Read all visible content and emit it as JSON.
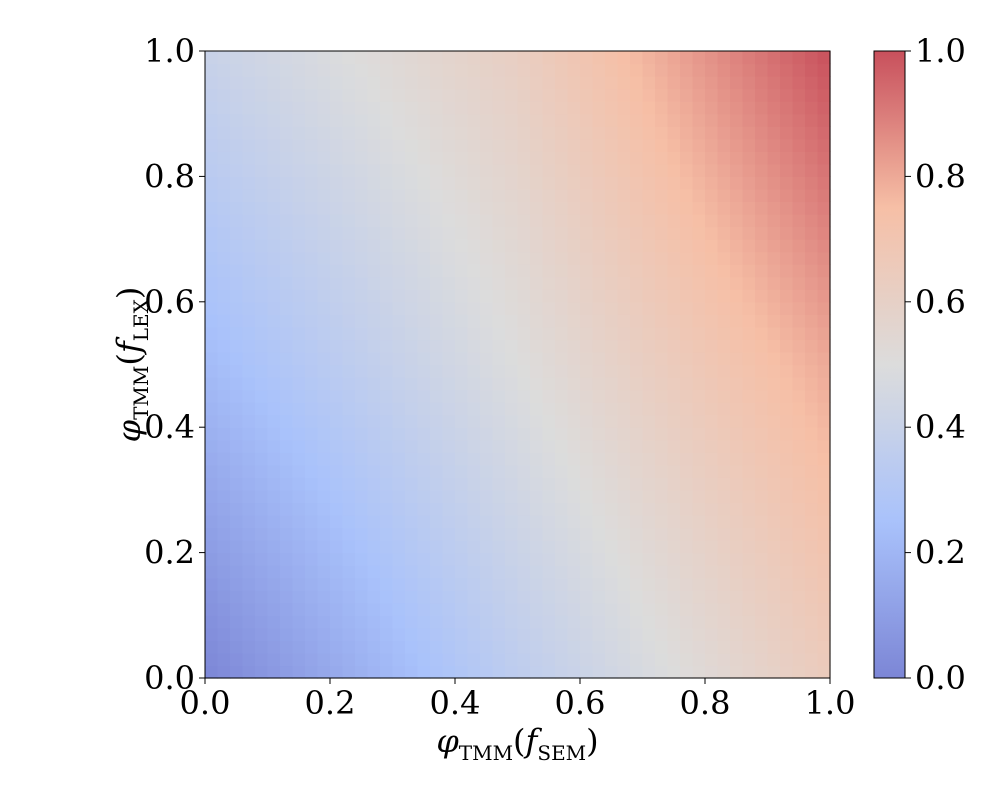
{
  "chart_data": {
    "type": "heatmap",
    "title": "",
    "xlabel": {
      "symbol": "φ",
      "sub": "TMM",
      "arg_var": "f",
      "arg_sub": "SEM"
    },
    "ylabel": {
      "symbol": "φ",
      "sub": "TMM",
      "arg_var": "f",
      "arg_sub": "LEX"
    },
    "xlim": [
      0.0,
      1.0
    ],
    "ylim": [
      0.0,
      1.0
    ],
    "x_ticks": [
      "0.0",
      "0.2",
      "0.4",
      "0.6",
      "0.8",
      "1.0"
    ],
    "y_ticks": [
      "0.0",
      "0.2",
      "0.4",
      "0.6",
      "0.8",
      "1.0"
    ],
    "colorbar": {
      "range": [
        0.0,
        1.0
      ],
      "ticks": [
        "0.0",
        "0.2",
        "0.4",
        "0.6",
        "0.8",
        "1.0"
      ],
      "colormap": "coolwarm",
      "colors": [
        "#7c86d6",
        "#a9c2fb",
        "#dcdcdc",
        "#f6bfa6",
        "#c8505c"
      ]
    },
    "grid": false,
    "legend": "none",
    "field_samples": {
      "x": [
        0.0,
        0.5,
        1.0
      ],
      "y": [
        0.0,
        0.5,
        1.0
      ],
      "values": [
        [
          0.0,
          0.35,
          0.65
        ],
        [
          0.22,
          0.5,
          0.8
        ],
        [
          0.4,
          0.62,
          1.0
        ]
      ]
    }
  }
}
